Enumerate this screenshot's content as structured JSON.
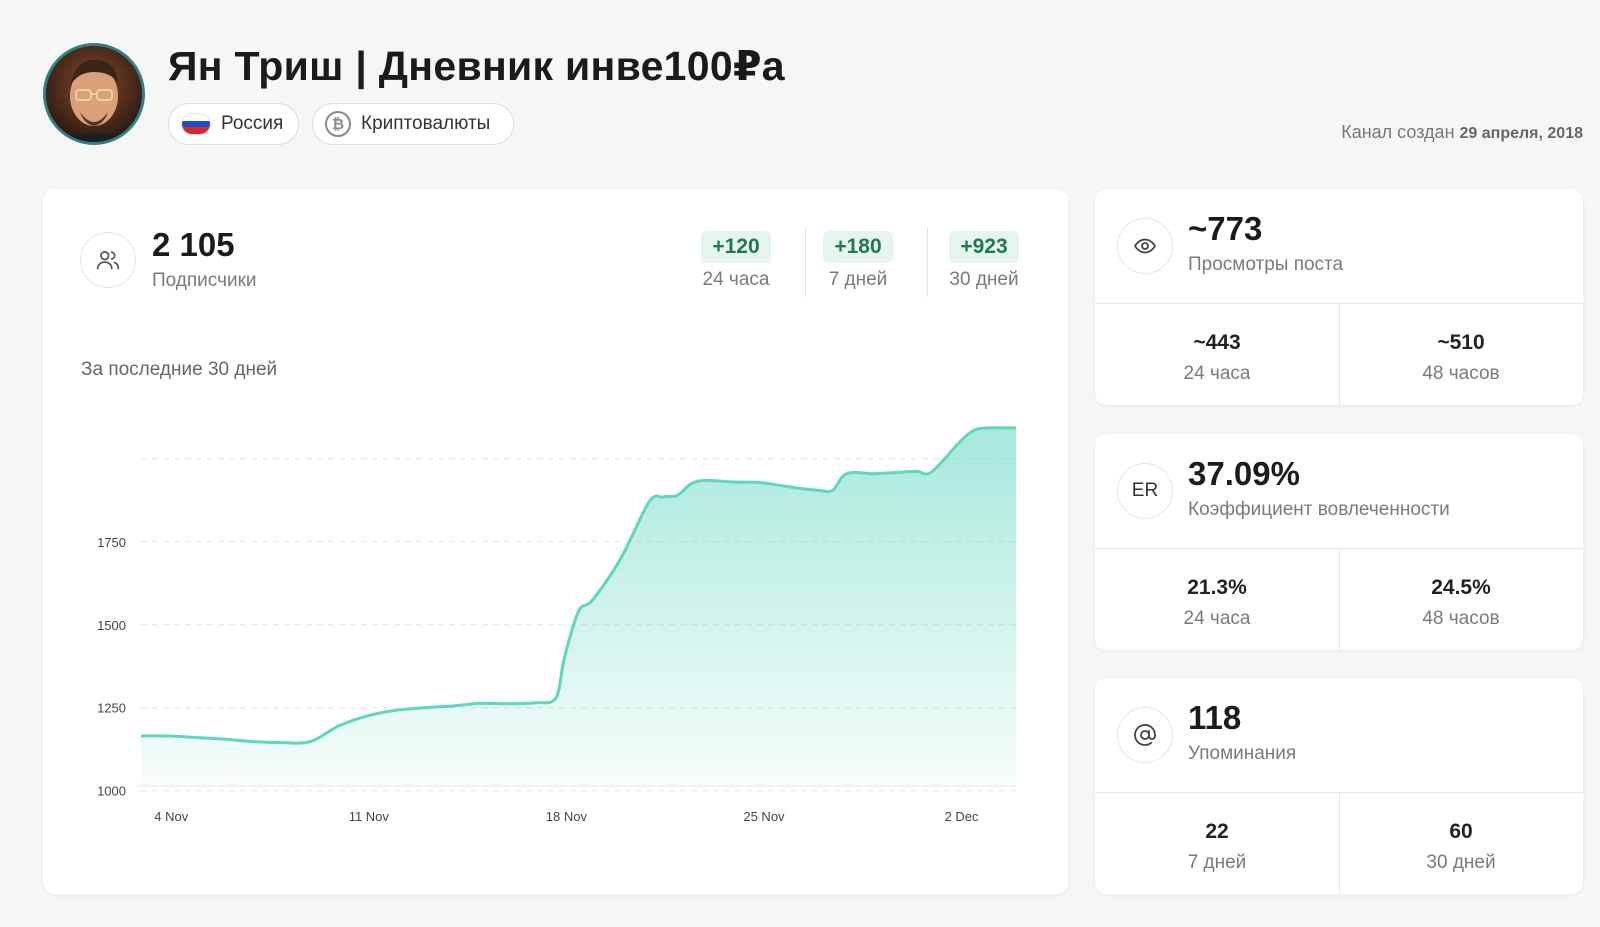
{
  "header": {
    "title": "Ян Триш | Дневник инве100₽а",
    "tags": [
      {
        "label": "Россия",
        "icon": "russia-flag-icon"
      },
      {
        "label": "Криптовалюты",
        "icon": "bitcoin-icon"
      }
    ],
    "created_label": "Канал создан",
    "created_date": "29 апреля, 2018"
  },
  "subscribers": {
    "value": "2 105",
    "label": "Подписчики",
    "deltas": [
      {
        "value": "+120",
        "label": "24 часа"
      },
      {
        "value": "+180",
        "label": "7 дней"
      },
      {
        "value": "+923",
        "label": "30 дней"
      }
    ],
    "chart_title": "За последние 30 дней"
  },
  "views": {
    "value": "~773",
    "label": "Просмотры поста",
    "cells": [
      {
        "value": "~443",
        "label": "24 часа"
      },
      {
        "value": "~510",
        "label": "48 часов"
      }
    ]
  },
  "engagement": {
    "icon_text": "ER",
    "value": "37.09%",
    "label": "Коэффициент вовлеченности",
    "cells": [
      {
        "value": "21.3%",
        "label": "24 часа"
      },
      {
        "value": "24.5%",
        "label": "48 часов"
      }
    ]
  },
  "mentions": {
    "value": "118",
    "label": "Упоминания",
    "cells": [
      {
        "value": "22",
        "label": "7 дней"
      },
      {
        "value": "60",
        "label": "30 дней"
      }
    ]
  },
  "colors": {
    "accent": "#5fd6be",
    "badge_bg": "#e5f5ee",
    "badge_text": "#1e7a55"
  },
  "chart_data": {
    "type": "area",
    "y_ticks": [
      1000,
      1250,
      1500,
      1750
    ],
    "ylim": [
      960,
      2150
    ],
    "x_tick_labels": [
      "4 Nov",
      "11 Nov",
      "18 Nov",
      "25 Nov",
      "2 Dec"
    ],
    "x_tick_days": [
      0,
      7,
      14,
      21,
      28
    ],
    "xlim": [
      -1,
      30
    ],
    "grid": true,
    "series": [
      {
        "x": [
          -1,
          0,
          1,
          2,
          3,
          4,
          5,
          6,
          7,
          8,
          9,
          10,
          11,
          12,
          13,
          13.7,
          14,
          14.5,
          15,
          16,
          17,
          17.5,
          18,
          18.5,
          19,
          20,
          21,
          22,
          23,
          23.5,
          24,
          25,
          26,
          26.5,
          27,
          28,
          28.5,
          29,
          30
        ],
        "y": [
          1165,
          1165,
          1160,
          1155,
          1148,
          1145,
          1148,
          1195,
          1225,
          1242,
          1250,
          1255,
          1263,
          1262,
          1265,
          1280,
          1400,
          1540,
          1575,
          1700,
          1870,
          1885,
          1890,
          1925,
          1935,
          1930,
          1928,
          1915,
          1905,
          1905,
          1955,
          1955,
          1960,
          1962,
          1960,
          2050,
          2085,
          2093,
          2093
        ]
      }
    ]
  }
}
